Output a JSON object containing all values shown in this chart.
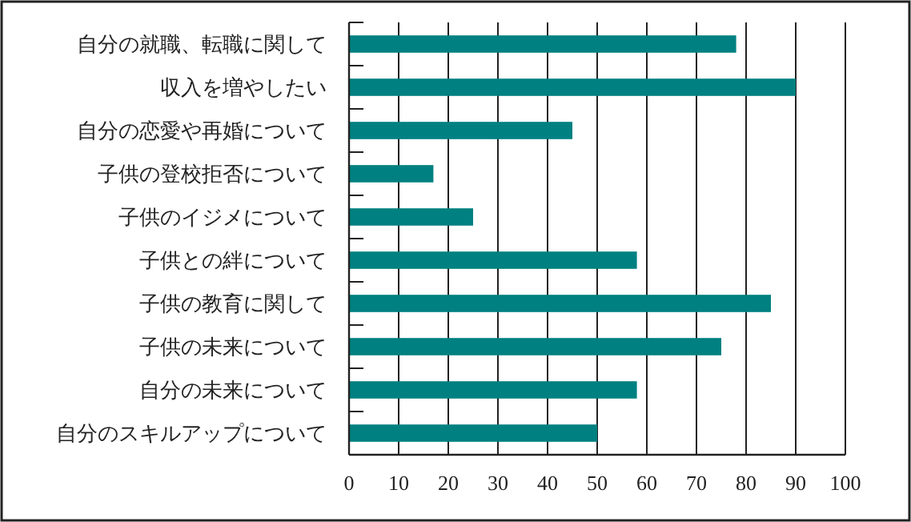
{
  "chart_data": {
    "type": "bar",
    "orientation": "horizontal",
    "categories": [
      "自分の就職、転職に関して",
      "収入を増やしたい",
      "自分の恋愛や再婚について",
      "子供の登校拒否について",
      "子供のイジメについて",
      "子供との絆について",
      "子供の教育に関して",
      "子供の未来について",
      "自分の未来について",
      "自分のスキルアップについて"
    ],
    "values": [
      78,
      90,
      45,
      17,
      25,
      58,
      85,
      75,
      58,
      50
    ],
    "color": "#008080",
    "xlim": [
      0,
      100
    ],
    "xticks": [
      0,
      10,
      20,
      30,
      40,
      50,
      60,
      70,
      80,
      90,
      100
    ],
    "grid": "x"
  }
}
